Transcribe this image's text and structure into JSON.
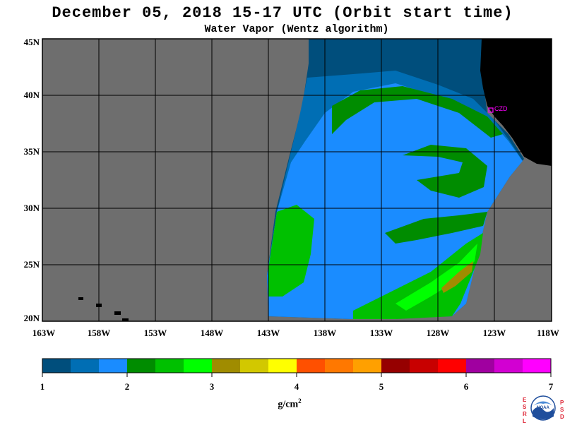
{
  "title": "December 05, 2018  15-17 UTC  (Orbit start time)",
  "subtitle": "Water Vapor (Wentz algorithm)",
  "map": {
    "lat_labels": [
      "45N",
      "40N",
      "35N",
      "30N",
      "25N",
      "20N"
    ],
    "lon_labels": [
      "163W",
      "158W",
      "153W",
      "148W",
      "143W",
      "138W",
      "133W",
      "128W",
      "123W",
      "118W"
    ],
    "station_label": "CZD",
    "colors": {
      "no_data": "#6e6e6e",
      "land": "#000000",
      "grid": "#000000",
      "station": "#ff00ff"
    }
  },
  "colorbar": {
    "colors": [
      "#004e7c",
      "#006eb4",
      "#1a8cff",
      "#008c00",
      "#00c000",
      "#00ff00",
      "#a08c00",
      "#d2c800",
      "#ffff00",
      "#ff5000",
      "#ff7800",
      "#ffa000",
      "#960000",
      "#c80000",
      "#ff0000",
      "#a000a0",
      "#d200d2",
      "#ff00ff"
    ],
    "tick_labels": [
      "1",
      "2",
      "3",
      "4",
      "5",
      "6",
      "7"
    ],
    "units": "g/cm",
    "units_sup": "2"
  },
  "logo": {
    "name": "NOAA",
    "left_letters": [
      "E",
      "S",
      "R",
      "L"
    ],
    "right_letters": [
      "P",
      "S",
      "D"
    ]
  }
}
